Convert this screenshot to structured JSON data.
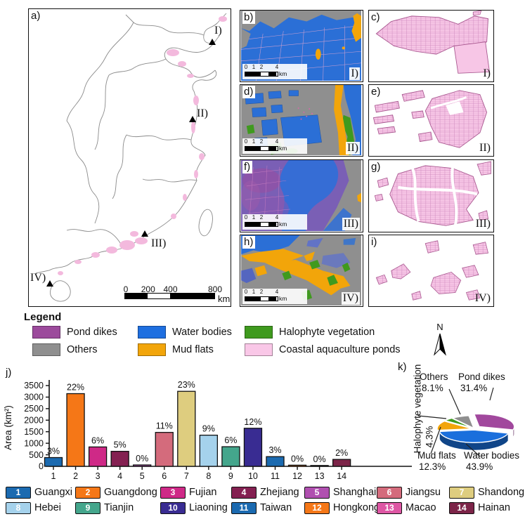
{
  "figure": {
    "panels": {
      "a": {
        "label": "a)"
      },
      "b": {
        "label": "b)",
        "roman": "I)"
      },
      "c": {
        "label": "c)",
        "roman": "I)"
      },
      "d": {
        "label": "d)",
        "roman": "II)"
      },
      "e": {
        "label": "e)",
        "roman": "II)"
      },
      "f": {
        "label": "f)",
        "roman": "III)"
      },
      "g": {
        "label": "g)",
        "roman": "III)"
      },
      "h": {
        "label": "h)",
        "roman": "IV)"
      },
      "i": {
        "label": "i)",
        "roman": "IV)"
      },
      "j": {
        "label": "j)"
      },
      "k": {
        "label": "k)"
      }
    },
    "map_markers": [
      {
        "label": "I)"
      },
      {
        "label": "II)"
      },
      {
        "label": "III)"
      },
      {
        "label": "IV)"
      }
    ],
    "main_scalebar": {
      "ticks": [
        "0",
        "200",
        "400",
        "800"
      ],
      "unit": "km"
    },
    "mini_scalebar": {
      "ticks": [
        "0",
        "1",
        "2",
        "4"
      ],
      "unit": "km"
    },
    "north_label": "N"
  },
  "legend": {
    "title": "Legend",
    "items": [
      {
        "label": "Pond dikes",
        "color": "#9c4a9c"
      },
      {
        "label": "Water bodies",
        "color": "#1e6fe0"
      },
      {
        "label": "Halophyte vegetation",
        "color": "#3f9a1e"
      },
      {
        "label": "Others",
        "color": "#8f8f8f"
      },
      {
        "label": "Mud flats",
        "color": "#f2a50a"
      },
      {
        "label": "Coastal aquaculture ponds",
        "color": "#f9c7e7"
      }
    ]
  },
  "chart_data": [
    {
      "id": "j",
      "type": "bar",
      "title": "",
      "xlabel": "",
      "ylabel": "Area (km²)",
      "ylim": [
        0,
        3500
      ],
      "yticks": [
        0,
        500,
        1000,
        1500,
        2000,
        2500,
        3000,
        3500
      ],
      "categories": [
        "1",
        "2",
        "3",
        "4",
        "5",
        "6",
        "7",
        "8",
        "9",
        "10",
        "11",
        "12",
        "13",
        "14"
      ],
      "values": [
        380,
        3150,
        840,
        650,
        60,
        1470,
        3250,
        1350,
        850,
        1650,
        420,
        50,
        20,
        300
      ],
      "bar_labels": [
        "3%",
        "22%",
        "6%",
        "5%",
        "0%",
        "11%",
        "23%",
        "9%",
        "6%",
        "12%",
        "3%",
        "0%",
        "0%",
        "2%"
      ],
      "grid": false,
      "legend_position": "none"
    },
    {
      "id": "k",
      "type": "pie",
      "start_angle_deg": -15,
      "direction": "ccw",
      "slices": [
        {
          "label": "Pond dikes",
          "pct": 31.4,
          "color": "#a1489d"
        },
        {
          "label": "Others",
          "pct": 8.1,
          "color": "#8f8f8f"
        },
        {
          "label": "Halophyte vegetation",
          "pct": 4.3,
          "color": "#3f9a1e"
        },
        {
          "label": "Mud flats",
          "pct": 12.3,
          "color": "#f2a50a"
        },
        {
          "label": "Water bodies",
          "pct": 43.9,
          "color": "#1a6fdc"
        }
      ]
    }
  ],
  "pie_labels": {
    "others": {
      "name": "Others",
      "pct": "8.1%"
    },
    "pond": {
      "name": "Pond dikes",
      "pct": "31.4%"
    },
    "halophyte": {
      "name": "Halophyte vegetation",
      "pct": "4.3%"
    },
    "mud": {
      "name": "Mud flats",
      "pct": "12.3%"
    },
    "water": {
      "name": "Water bodies",
      "pct": "43.9%"
    }
  },
  "province_legend": [
    {
      "num": "1",
      "name": "Guangxi",
      "color": "#1b6ab0"
    },
    {
      "num": "2",
      "name": "Guangdong",
      "color": "#f57717"
    },
    {
      "num": "3",
      "name": "Fujian",
      "color": "#cf2987"
    },
    {
      "num": "4",
      "name": "Zhejiang",
      "color": "#842051"
    },
    {
      "num": "5",
      "name": "Shanghai",
      "color": "#b04fb0"
    },
    {
      "num": "6",
      "name": "Jiangsu",
      "color": "#d46b7c"
    },
    {
      "num": "7",
      "name": "Shandong",
      "color": "#decd7f"
    },
    {
      "num": "8",
      "name": "Hebei",
      "color": "#a5d2ec"
    },
    {
      "num": "9",
      "name": "Tianjin",
      "color": "#44a68c"
    },
    {
      "num": "10",
      "name": "Liaoning",
      "color": "#392c92"
    },
    {
      "num": "11",
      "name": "Taiwan",
      "color": "#1b6ab0"
    },
    {
      "num": "12",
      "name": "Hongkong",
      "color": "#f57717"
    },
    {
      "num": "13",
      "name": "Macao",
      "color": "#de56a4"
    },
    {
      "num": "14",
      "name": "Hainan",
      "color": "#7c2448"
    }
  ]
}
